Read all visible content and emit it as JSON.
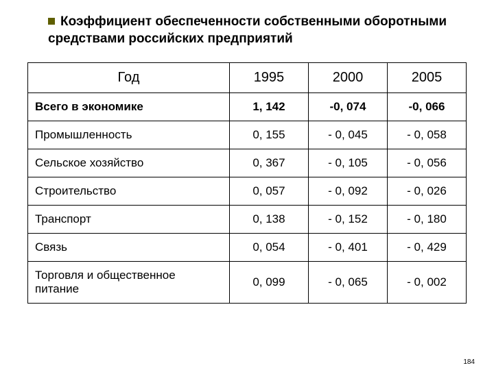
{
  "title_line1": "Коэффициент обеспеченности собственными оборотными",
  "title_line2": "средствами российских предприятий",
  "table": {
    "header_label": "Год",
    "columns": [
      "1995",
      "2000",
      "2005"
    ],
    "rows": [
      {
        "label": "Всего в экономике",
        "values": [
          "1, 142",
          "-0, 074",
          "-0, 066"
        ],
        "bold": true
      },
      {
        "label": "Промышленность",
        "values": [
          "0, 155",
          "- 0, 045",
          "- 0, 058"
        ],
        "bold": false
      },
      {
        "label": "Сельское хозяйство",
        "values": [
          "0, 367",
          "- 0, 105",
          "- 0, 056"
        ],
        "bold": false
      },
      {
        "label": "Строительство",
        "values": [
          "0, 057",
          "- 0, 092",
          "- 0, 026"
        ],
        "bold": false
      },
      {
        "label": "Транспорт",
        "values": [
          "0, 138",
          "- 0, 152",
          "- 0, 180"
        ],
        "bold": false
      },
      {
        "label": "Связь",
        "values": [
          "0, 054",
          "- 0, 401",
          "- 0, 429"
        ],
        "bold": false
      },
      {
        "label": "Торговля и общественное питание",
        "values": [
          "0, 099",
          "- 0, 065",
          "- 0, 002"
        ],
        "bold": false
      }
    ]
  },
  "page_number": "184",
  "style": {
    "bullet_color": "#5f5f00",
    "border_color": "#000000",
    "background": "#ffffff",
    "title_fontsize": 19,
    "cell_fontsize": 17,
    "header_fontsize": 20
  }
}
